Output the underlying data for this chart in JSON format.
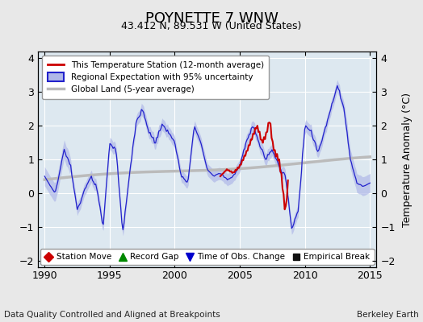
{
  "title": "POYNETTE 7 WNW",
  "subtitle": "43.412 N, 89.531 W (United States)",
  "xlabel_bottom": "Data Quality Controlled and Aligned at Breakpoints",
  "xlabel_right": "Berkeley Earth",
  "ylabel": "Temperature Anomaly (°C)",
  "xlim": [
    1989.5,
    2015.5
  ],
  "ylim": [
    -2.2,
    4.2
  ],
  "yticks": [
    -2,
    -1,
    0,
    1,
    2,
    3,
    4
  ],
  "xticks": [
    1990,
    1995,
    2000,
    2005,
    2010,
    2015
  ],
  "background_color": "#e8e8e8",
  "plot_bg_color": "#dde8f0",
  "legend_entries": [
    "This Temperature Station (12-month average)",
    "Regional Expectation with 95% uncertainty",
    "Global Land (5-year average)"
  ],
  "legend_colors": [
    "#cc0000",
    "#4444cc",
    "#aaaaaa"
  ],
  "station_move_color": "#cc0000",
  "record_gap_color": "#008800",
  "time_obs_color": "#0000cc",
  "empirical_break_color": "#111111"
}
